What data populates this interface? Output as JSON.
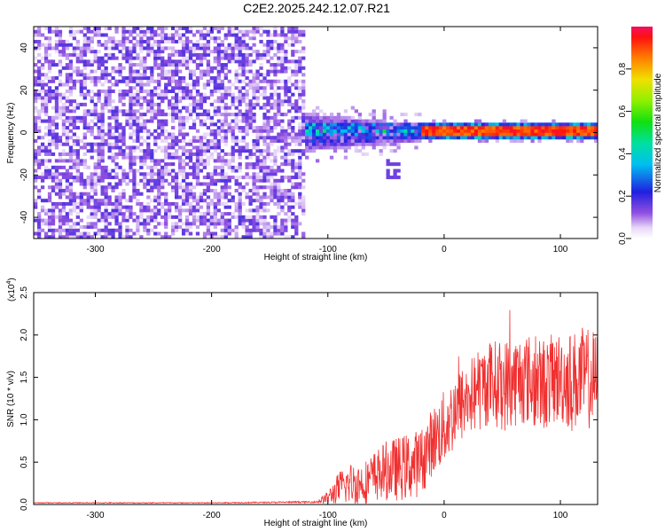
{
  "title": "C2E2.2025.242.12.07.R21",
  "chart_data": [
    {
      "type": "heatmap",
      "title": "C2E2.2025.242.12.07.R21",
      "xlabel": "Height of straight line (km)",
      "ylabel": "Frequency (Hz)",
      "xlim": [
        -353,
        132
      ],
      "ylim": [
        -50,
        50
      ],
      "xticks": [
        -300,
        -200,
        -100,
        0,
        100
      ],
      "yticks": [
        -40,
        -20,
        0,
        20,
        40
      ],
      "xtick_labels": [
        "-300",
        "-200",
        "-100",
        "0",
        "100"
      ],
      "ytick_labels": [
        "-40",
        "-20",
        "0",
        "20",
        "40"
      ],
      "colorbar": {
        "label": "Normalized spectral amplitude",
        "range": [
          0,
          1
        ],
        "ticks": [
          0.0,
          0.2,
          0.4,
          0.6,
          0.8
        ],
        "tick_labels": [
          "0.0",
          "0.2",
          "0.4",
          "0.6",
          "0.8"
        ]
      },
      "regions": [
        {
          "name": "noise",
          "x_range": [
            -353,
            -120
          ],
          "freq_range": [
            -50,
            50
          ],
          "amplitude": 0.12
        },
        {
          "name": "transition",
          "x_range": [
            -120,
            -20
          ],
          "freq_range": [
            -12,
            12
          ],
          "amplitude": 0.3
        },
        {
          "name": "echo",
          "x_range": [
            -20,
            132
          ],
          "freq_center": 1,
          "freq_halfwidth": 2.5,
          "amplitude": 0.95
        }
      ]
    },
    {
      "type": "line",
      "xlabel": "Height of straight line (km)",
      "ylabel": "SNR (10 * v/v)",
      "ymult": "(x10",
      "ymult_exp": "4",
      "ymult_close": ")",
      "xlim": [
        -353,
        132
      ],
      "ylim": [
        0,
        2.5
      ],
      "xticks": [
        -300,
        -200,
        -100,
        0,
        100
      ],
      "yticks": [
        0.0,
        0.5,
        1.0,
        1.5,
        2.0,
        2.5
      ],
      "xtick_labels": [
        "-300",
        "-200",
        "-100",
        "0",
        "100"
      ],
      "ytick_labels": [
        "0.0",
        "0.5",
        "1.0",
        "1.5",
        "2.0",
        "2.5"
      ],
      "color": "#f03030",
      "series": [
        {
          "name": "SNR",
          "x": [
            -353,
            -200,
            -110,
            -100,
            -90,
            -80,
            -70,
            -60,
            -50,
            -40,
            -30,
            -20,
            -10,
            0,
            10,
            20,
            30,
            40,
            50,
            60,
            70,
            80,
            90,
            100,
            110,
            120,
            132
          ],
          "mean": [
            0.02,
            0.02,
            0.03,
            0.08,
            0.2,
            0.25,
            0.25,
            0.33,
            0.4,
            0.42,
            0.45,
            0.5,
            0.75,
            0.9,
            1.1,
            1.25,
            1.35,
            1.45,
            1.4,
            1.45,
            1.5,
            1.4,
            1.45,
            1.5,
            1.45,
            1.5,
            1.45
          ],
          "spread": [
            0.005,
            0.005,
            0.01,
            0.08,
            0.2,
            0.25,
            0.25,
            0.3,
            0.35,
            0.38,
            0.4,
            0.4,
            0.4,
            0.45,
            0.45,
            0.45,
            0.5,
            0.5,
            0.55,
            0.55,
            0.55,
            0.55,
            0.55,
            0.55,
            0.6,
            0.6,
            0.6
          ]
        }
      ]
    }
  ]
}
